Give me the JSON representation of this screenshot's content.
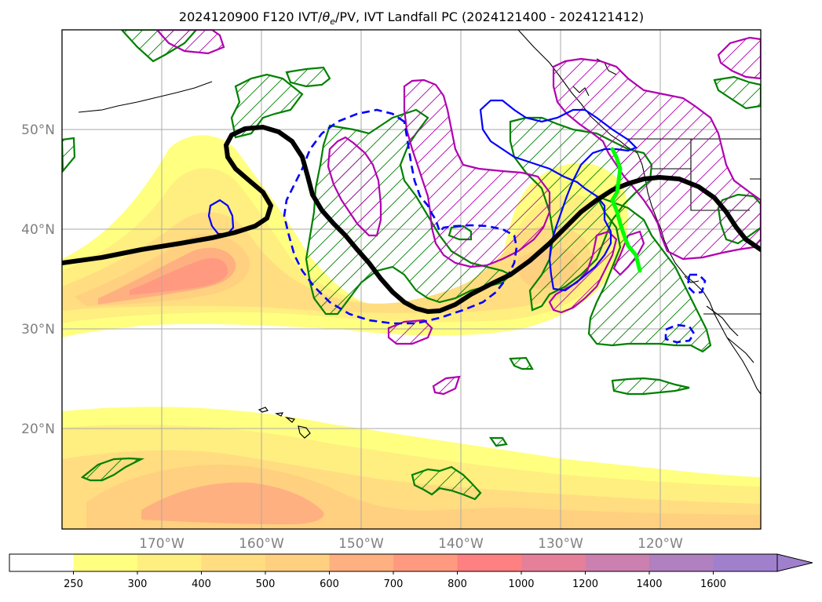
{
  "title": {
    "prefix": "2024120900 F120 IVT/",
    "theta": "θ",
    "theta_sub": "e",
    "suffix": "/PV, IVT Landfall PC (2024121400 - 2024121412)"
  },
  "map": {
    "lat_labels": [
      "50°N",
      "40°N",
      "30°N",
      "20°N"
    ],
    "lon_labels": [
      "170°W",
      "160°W",
      "150°W",
      "140°W",
      "130°W",
      "120°W"
    ],
    "lon_range": [
      -180,
      -110
    ],
    "lat_range": [
      10,
      60
    ],
    "gridlines": true
  },
  "colorbar": {
    "levels": [
      "250",
      "300",
      "400",
      "500",
      "600",
      "700",
      "800",
      "1000",
      "1200",
      "1400",
      "1600"
    ],
    "colors": [
      "#ffffff",
      "#ffff80",
      "#ffee80",
      "#ffdd80",
      "#ffd080",
      "#ffb080",
      "#ff9a80",
      "#ff8080",
      "#e6809a",
      "#cc80b0",
      "#b080c0",
      "#a080cc"
    ],
    "extend": "max"
  },
  "contours": {
    "thick_black": "black",
    "dashed_blue": "blue",
    "solid_blue": "blue",
    "magenta_hatched": "#cc00cc",
    "green_hatched": "#008000",
    "landfall_line": "#00ff00"
  }
}
